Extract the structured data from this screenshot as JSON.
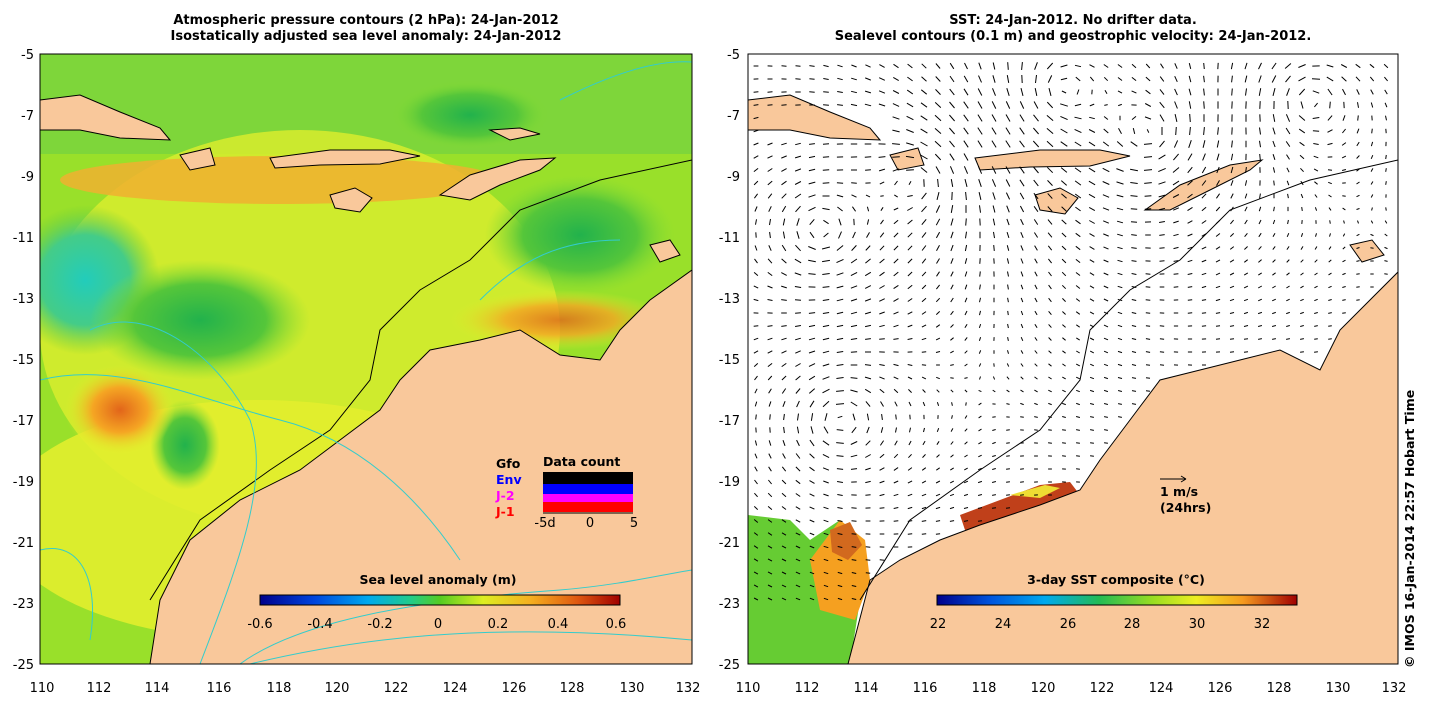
{
  "left_panel": {
    "title_line1": "Atmospheric pressure contours (2 hPa): 24-Jan-2012",
    "title_line2": "Isostatically adjusted sea level anomaly: 24-Jan-2012",
    "x_ticks": [
      "110",
      "112",
      "114",
      "116",
      "118",
      "120",
      "122",
      "124",
      "126",
      "128",
      "130",
      "132"
    ],
    "y_ticks": [
      "-5",
      "-7",
      "-9",
      "-11",
      "-13",
      "-15",
      "-17",
      "-19",
      "-21",
      "-23",
      "-25"
    ],
    "colorbar": {
      "title": "Sea level anomaly (m)",
      "labels": [
        "-0.6",
        "-0.4",
        "-0.2",
        "0",
        "0.2",
        "0.4",
        "0.6"
      ]
    },
    "data_count": {
      "title": "Data count",
      "legend": [
        {
          "label": "Gfo",
          "color": "#000000"
        },
        {
          "label": "Env",
          "color": "#0000ff"
        },
        {
          "label": "J-2",
          "color": "#ff00ff"
        },
        {
          "label": "J-1",
          "color": "#ff0000"
        }
      ],
      "axis_labels": [
        "-5d",
        "0",
        "5"
      ]
    }
  },
  "right_panel": {
    "title_line1": "SST: 24-Jan-2012. No drifter data.",
    "title_line2": "Sealevel contours (0.1 m) and geostrophic velocity: 24-Jan-2012.",
    "x_ticks": [
      "110",
      "112",
      "114",
      "116",
      "118",
      "120",
      "122",
      "124",
      "126",
      "128",
      "130",
      "132"
    ],
    "y_ticks": [
      "-5",
      "-7",
      "-9",
      "-11",
      "-13",
      "-15",
      "-17",
      "-19",
      "-21",
      "-23",
      "-25"
    ],
    "velocity_scale": {
      "label1": "1 m/s",
      "label2": "(24hrs)"
    },
    "colorbar": {
      "title": "3-day SST composite (°C)",
      "labels": [
        "22",
        "24",
        "26",
        "28",
        "30",
        "32"
      ]
    }
  },
  "copyright": "© IMOS 16-Jan-2014 22:57 Hobart Time",
  "colors": {
    "land": "#f9c89b",
    "slope_green": "#66cc33",
    "slope_yellow": "#e5ef2b",
    "slope_orange": "#f5a623",
    "contour_cyan": "#33cccc"
  }
}
